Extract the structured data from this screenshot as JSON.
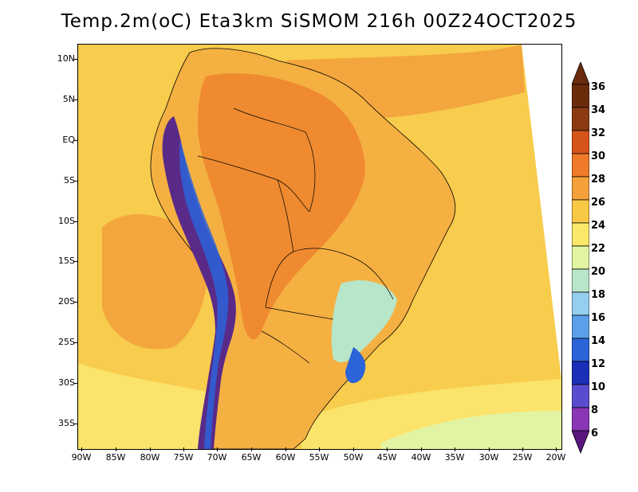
{
  "title": "Temp.2m(oC) Eta3km SiSMOM 216h 00Z24OCT2025",
  "lat_labels": [
    "10N",
    "5N",
    "EQ",
    "5S",
    "10S",
    "15S",
    "20S",
    "25S",
    "30S",
    "35S"
  ],
  "lon_labels": [
    "90W",
    "85W",
    "80W",
    "75W",
    "70W",
    "65W",
    "60W",
    "55W",
    "50W",
    "45W",
    "40W",
    "35W",
    "30W",
    "25W",
    "20W"
  ],
  "colorbar": {
    "labels": [
      "36",
      "34",
      "32",
      "30",
      "28",
      "26",
      "24",
      "22",
      "20",
      "18",
      "16",
      "14",
      "12",
      "10",
      "8",
      "6"
    ],
    "colors": [
      "#6b2c0c",
      "#8b3a12",
      "#d5541a",
      "#ef7a2a",
      "#f5a13b",
      "#f9c946",
      "#fbe86a",
      "#e2f4a1",
      "#b8e6c9",
      "#95cfee",
      "#5aa0e8",
      "#2b63d8",
      "#1a2fb8",
      "#5a4ccf",
      "#8a36b5",
      "#5a157f"
    ]
  },
  "colors": {
    "ocean_warm": "#f3a63e",
    "ocean_mid": "#f8cc4c",
    "ocean_cool": "#fbe36c",
    "ocean_cold": "#c9ecb0",
    "land_hot": "#ef8a30",
    "land_warm": "#f5b042",
    "andes_cold": "#5a2a88",
    "andes_mid": "#2f6ad8",
    "border": "#000000"
  }
}
